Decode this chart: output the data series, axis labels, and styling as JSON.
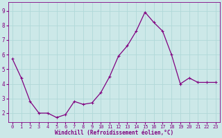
{
  "x": [
    0,
    1,
    2,
    3,
    4,
    5,
    6,
    7,
    8,
    9,
    10,
    11,
    12,
    13,
    14,
    15,
    16,
    17,
    18,
    19,
    20,
    21,
    22,
    23
  ],
  "y": [
    5.7,
    4.4,
    2.8,
    2.0,
    2.0,
    1.7,
    1.9,
    2.8,
    2.6,
    2.7,
    3.4,
    4.5,
    5.9,
    6.6,
    7.6,
    8.9,
    8.2,
    7.6,
    6.0,
    4.0,
    4.4,
    4.1,
    4.1,
    4.1
  ],
  "line_color": "#800080",
  "marker": "+",
  "marker_size": 3.5,
  "marker_lw": 0.8,
  "bg_color": "#cce8e8",
  "grid_color": "#b0d8d8",
  "xlabel": "Windchill (Refroidissement éolien,°C)",
  "xlabel_color": "#800080",
  "tick_color": "#800080",
  "label_bg": "#cce8e8",
  "ylim": [
    1.4,
    9.6
  ],
  "xlim": [
    -0.5,
    23.5
  ],
  "yticks": [
    2,
    3,
    4,
    5,
    6,
    7,
    8,
    9
  ],
  "xticks": [
    0,
    1,
    2,
    3,
    4,
    5,
    6,
    7,
    8,
    9,
    10,
    11,
    12,
    13,
    14,
    15,
    16,
    17,
    18,
    19,
    20,
    21,
    22,
    23
  ],
  "tick_fontsize": 5.0,
  "xlabel_fontsize": 5.5,
  "line_width": 0.9
}
